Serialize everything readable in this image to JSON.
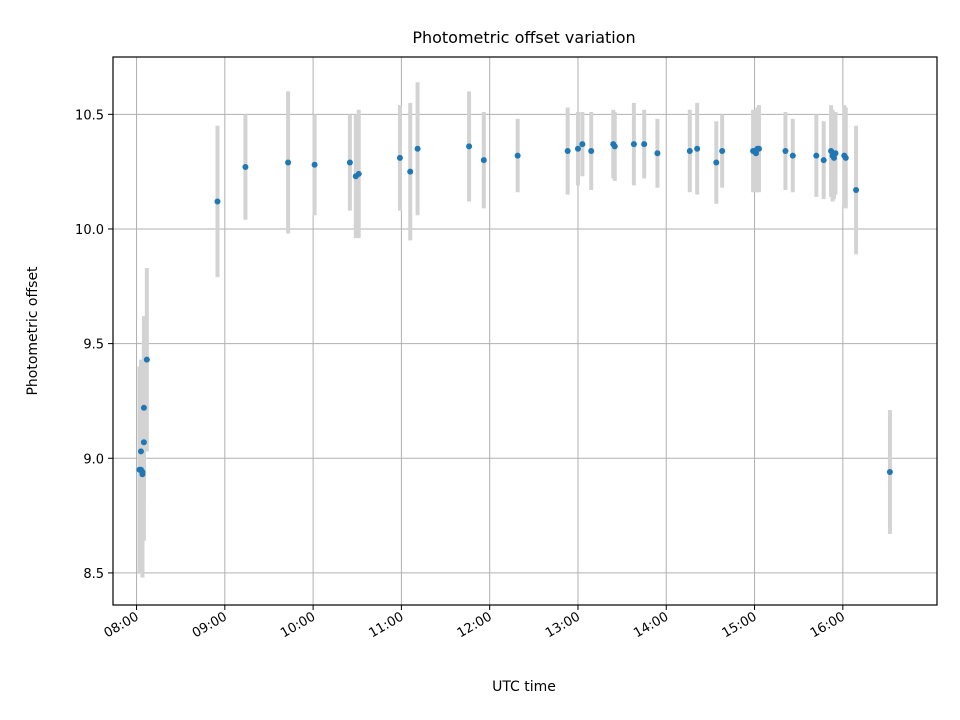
{
  "colors": {
    "point": "#1f77b4",
    "errorbar": "#d3d3d3",
    "grid": "#b0b0b0",
    "axis": "#000000"
  },
  "chart_data": {
    "type": "scatter",
    "title": "Photometric offset variation",
    "xlabel": "UTC time",
    "ylabel": "Photometric offset",
    "xlim": [
      "07:44",
      "17:04"
    ],
    "ylim": [
      8.36,
      10.75
    ],
    "grid": true,
    "legend": "none",
    "xticks": [
      "08:00",
      "09:00",
      "10:00",
      "11:00",
      "12:00",
      "13:00",
      "14:00",
      "15:00",
      "16:00"
    ],
    "yticks": [
      8.5,
      9.0,
      9.5,
      10.0,
      10.5
    ],
    "ytick_labels": [
      "8.5",
      "9.0",
      "9.5",
      "10.0",
      "10.5"
    ],
    "series": [
      {
        "x": [
          "08:02",
          "08:03",
          "08:03",
          "08:04",
          "08:04",
          "08:05",
          "08:05",
          "08:07",
          "08:55",
          "09:14",
          "09:43",
          "10:01",
          "10:25",
          "10:29",
          "10:31",
          "10:59",
          "11:06",
          "11:11",
          "11:46",
          "11:56",
          "12:19",
          "12:53",
          "13:00",
          "13:03",
          "13:09",
          "13:24",
          "13:25",
          "13:38",
          "13:45",
          "13:54",
          "14:16",
          "14:21",
          "14:34",
          "14:38",
          "14:59",
          "15:00",
          "15:01",
          "15:02",
          "15:03",
          "15:21",
          "15:26",
          "15:42",
          "15:47",
          "15:52",
          "15:53",
          "15:54",
          "15:55",
          "16:01",
          "16:02",
          "16:09",
          "16:32"
        ],
        "y": [
          8.95,
          9.03,
          8.95,
          8.94,
          8.93,
          9.07,
          9.22,
          9.43,
          10.12,
          10.27,
          10.29,
          10.28,
          10.29,
          10.23,
          10.24,
          10.31,
          10.25,
          10.35,
          10.36,
          10.3,
          10.32,
          10.34,
          10.35,
          10.37,
          10.34,
          10.37,
          10.36,
          10.37,
          10.37,
          10.33,
          10.34,
          10.35,
          10.29,
          10.34,
          10.34,
          10.34,
          10.33,
          10.35,
          10.35,
          10.34,
          10.32,
          10.32,
          10.3,
          10.34,
          10.32,
          10.31,
          10.33,
          10.32,
          10.31,
          10.17,
          8.94
        ],
        "yerr": [
          0.45,
          0.4,
          0.45,
          0.44,
          0.45,
          0.43,
          0.4,
          0.4,
          0.33,
          0.23,
          0.31,
          0.22,
          0.21,
          0.27,
          0.28,
          0.23,
          0.3,
          0.29,
          0.24,
          0.21,
          0.16,
          0.19,
          0.16,
          0.14,
          0.17,
          0.15,
          0.15,
          0.18,
          0.15,
          0.15,
          0.18,
          0.2,
          0.18,
          0.16,
          0.18,
          0.18,
          0.17,
          0.18,
          0.19,
          0.17,
          0.16,
          0.18,
          0.17,
          0.2,
          0.2,
          0.18,
          0.18,
          0.22,
          0.22,
          0.28,
          0.27
        ]
      }
    ]
  }
}
